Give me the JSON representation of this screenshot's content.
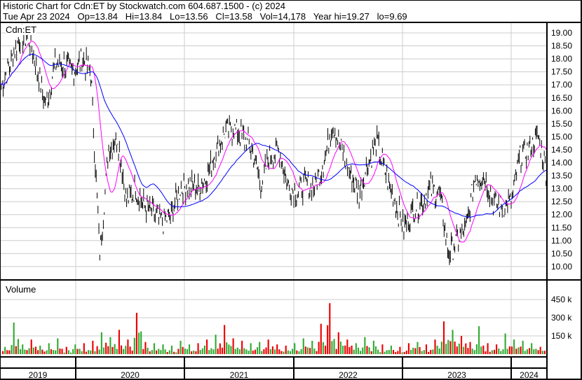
{
  "header": {
    "title": "Historic Chart for Cdn:ET by Stockwatch.com 604.687.1500 - (c) 2024",
    "quote": "Tue Apr 23 2024   Op=13.84   Hi=13.84   Lo=13.56   Cl=13.58   Vol=14,178   Year hi=19.27   lo=9.69"
  },
  "chart_data": [
    {
      "type": "line",
      "title": "Cdn:ET",
      "x_start": "2019-04",
      "x_end": "2024-04",
      "x_tick_labels": [
        "2019",
        "2020",
        "2021",
        "2022",
        "2023",
        "2024"
      ],
      "ylim": [
        9.7,
        19.4
      ],
      "y_ticks": [
        "10.00",
        "10.50",
        "11.00",
        "11.50",
        "12.00",
        "12.50",
        "13.00",
        "13.50",
        "14.00",
        "14.50",
        "15.00",
        "15.50",
        "16.00",
        "16.50",
        "17.00",
        "17.50",
        "18.00",
        "18.50",
        "19.00"
      ],
      "grid": true,
      "series": [
        {
          "role": "price",
          "color": "#000000",
          "values": [
            17.0,
            17.8,
            18.8,
            18.9,
            17.5,
            16.2,
            17.8,
            17.8,
            17.5,
            18.0,
            17.5,
            10.5,
            14.5,
            15.0,
            12.5,
            13.0,
            12.3,
            12.0,
            11.7,
            12.0,
            13.0,
            13.1,
            13.0,
            13.5,
            14.5,
            15.2,
            15.3,
            15.0,
            14.5,
            13.2,
            14.2,
            14.5,
            13.2,
            12.8,
            13.2,
            13.0,
            14.0,
            15.5,
            14.5,
            13.5,
            12.8,
            14.0,
            14.8,
            13.5,
            12.5,
            11.5,
            12.2,
            12.5,
            13.0,
            12.8,
            10.5,
            11.0,
            11.5,
            13.5,
            13.5,
            12.5,
            12.3,
            12.5,
            14.2,
            14.5,
            15.0,
            13.6
          ]
        },
        {
          "role": "short moving average",
          "color": "#ff00ff"
        },
        {
          "role": "long moving average",
          "color": "#0000ff"
        }
      ]
    },
    {
      "type": "bar",
      "title": "Volume",
      "y_ticks": [
        "150 k",
        "300 k",
        "450 k"
      ],
      "ylim": [
        0,
        600000
      ],
      "up_color": "#33aa33",
      "down_color": "#ee0000",
      "values": [
        60,
        260,
        80,
        120,
        70,
        90,
        130,
        60,
        80,
        90,
        110,
        180,
        140,
        200,
        120,
        340,
        100,
        90,
        80,
        70,
        110,
        80,
        90,
        120,
        160,
        240,
        130,
        110,
        90,
        100,
        120,
        80,
        70,
        90,
        130,
        110,
        250,
        420,
        180,
        120,
        90,
        140,
        110,
        80,
        70,
        60,
        90,
        100,
        80,
        120,
        270,
        200,
        150,
        100,
        230,
        90,
        80,
        170,
        120,
        110,
        90,
        60
      ]
    }
  ]
}
